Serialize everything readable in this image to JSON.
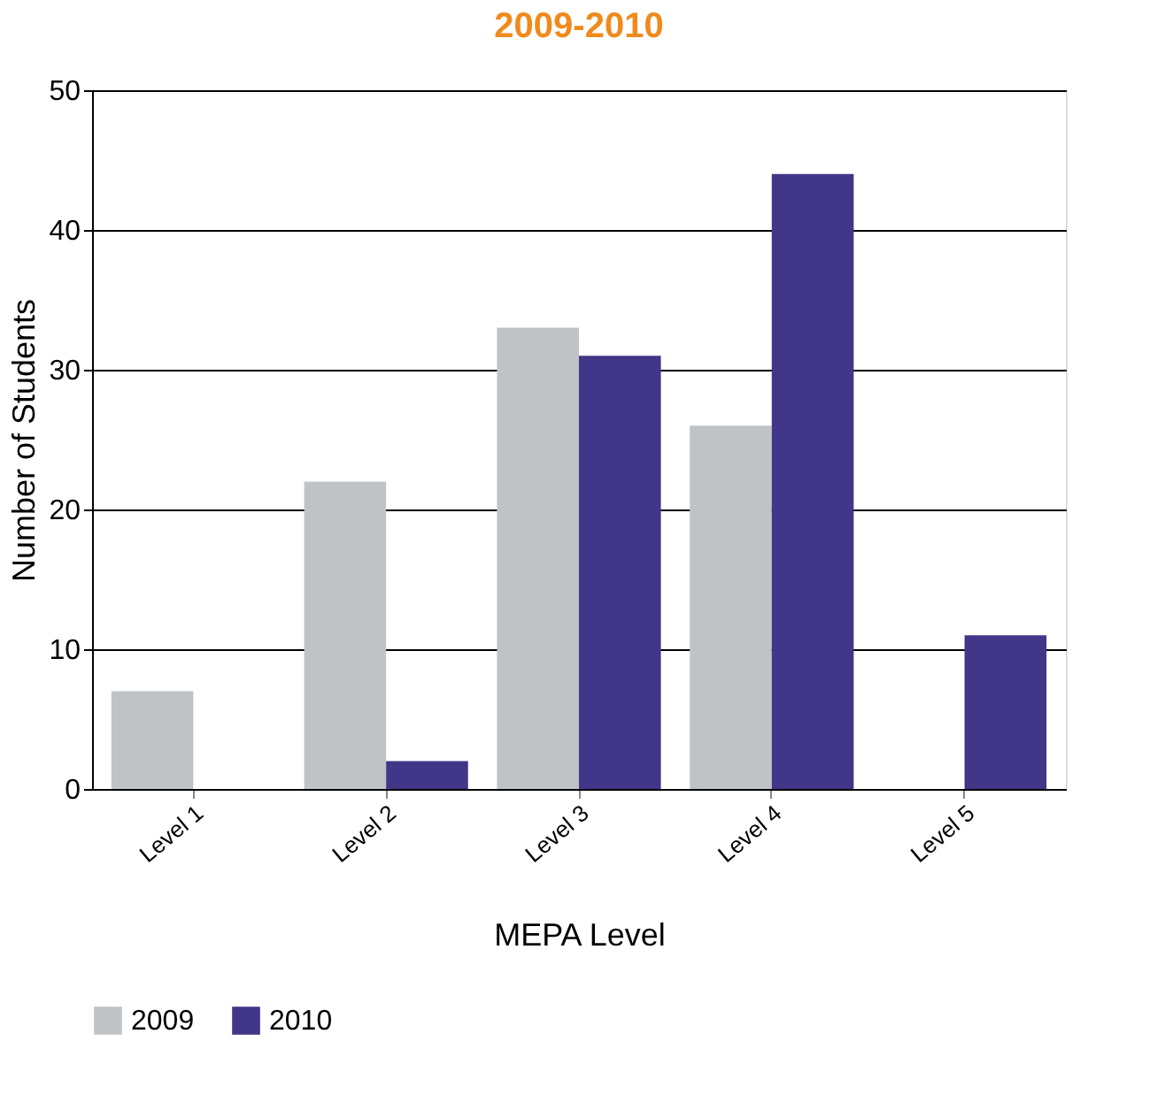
{
  "chart_data": {
    "type": "bar",
    "title": "2009-2010",
    "xlabel": "MEPA Level",
    "ylabel": "Number of Students",
    "categories": [
      "Level 1",
      "Level 2",
      "Level 3",
      "Level 4",
      "Level 5"
    ],
    "series": [
      {
        "name": "2009",
        "color": "#c0c3c6",
        "values": [
          7,
          22,
          33,
          26,
          null
        ]
      },
      {
        "name": "2010",
        "color": "#413687",
        "values": [
          null,
          2,
          31,
          44,
          11
        ]
      }
    ],
    "ylim": [
      0,
      50
    ],
    "yticks": [
      0,
      10,
      20,
      30,
      40,
      50
    ],
    "grid": "y",
    "legend": "bottom"
  }
}
